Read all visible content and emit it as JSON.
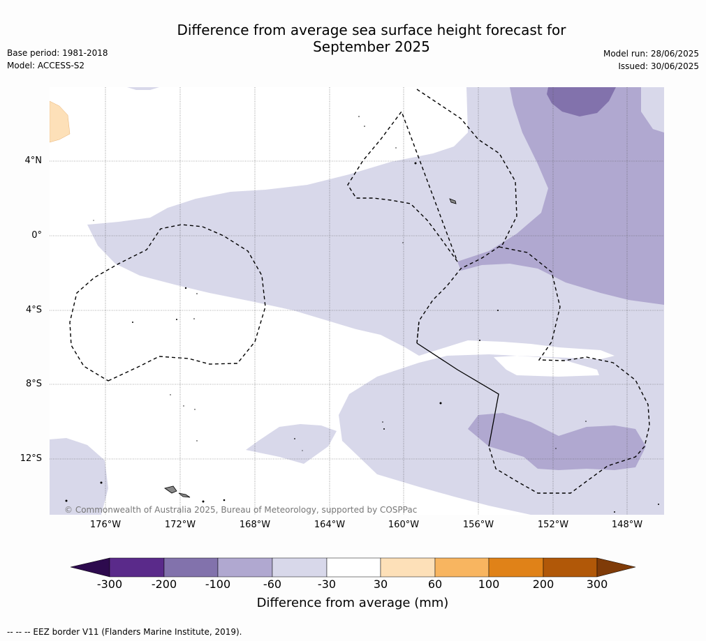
{
  "header": {
    "title_line1": "Difference from average sea surface height forecast for",
    "title_line2": "September 2025",
    "base_period": "Base period: 1981-2018",
    "model": "Model: ACCESS-S2",
    "model_run": "Model run: 28/06/2025",
    "issued": "Issued: 30/06/2025"
  },
  "map": {
    "lat_labels": [
      "4°N",
      "0°",
      "4°S",
      "8°S",
      "12°S"
    ],
    "lon_labels": [
      "176°W",
      "172°W",
      "168°W",
      "164°W",
      "160°W",
      "156°W",
      "152°W",
      "148°W"
    ],
    "copyright": "© Commonwealth of Australia 2025, Bureau of Meteorology, supported by COSPPac"
  },
  "colorbar": {
    "ticks": [
      "-300",
      "-200",
      "-100",
      "-60",
      "-30",
      "30",
      "60",
      "100",
      "200",
      "300"
    ],
    "colors": [
      "#2d0a4e",
      "#5a2a8a",
      "#8272ac",
      "#b0a8d0",
      "#d8d8ea",
      "#ffffff",
      "#fde0b8",
      "#f8b560",
      "#e08218",
      "#b15808",
      "#7f3b08"
    ],
    "label": "Difference from average (mm)"
  },
  "footnote": "--  --  -- EEZ border V11 (Flanders Marine Institute, 2019)."
}
